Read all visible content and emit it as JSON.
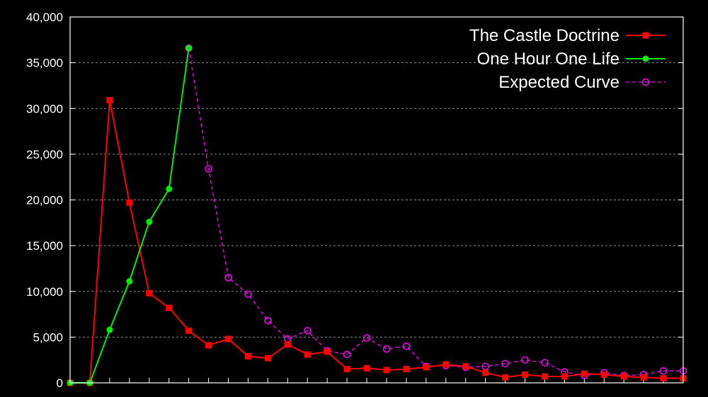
{
  "chart_data": {
    "type": "line",
    "title": "",
    "xlabel": "",
    "ylabel": "",
    "x": [
      0,
      1,
      2,
      3,
      4,
      5,
      6,
      7,
      8,
      9,
      10,
      11,
      12,
      13,
      14,
      15,
      16,
      17,
      18,
      19,
      20,
      21,
      22,
      23,
      24,
      25,
      26,
      27,
      28,
      29,
      30,
      31
    ],
    "xlim": [
      0,
      31
    ],
    "ylim": [
      0,
      40000
    ],
    "yticks": [
      0,
      5000,
      10000,
      15000,
      20000,
      25000,
      30000,
      35000,
      40000
    ],
    "ytick_labels": [
      "0",
      "5,000",
      "10,000",
      "15,000",
      "20,000",
      "25,000",
      "30,000",
      "35,000",
      "40,000"
    ],
    "grid": true,
    "legend_position": "top-right",
    "series": [
      {
        "name": "The Castle Doctrine",
        "color": "#ff0000",
        "marker": "square",
        "line_style": "solid",
        "x": [
          0,
          1,
          2,
          3,
          4,
          5,
          6,
          7,
          8,
          9,
          10,
          11,
          12,
          13,
          14,
          15,
          16,
          17,
          18,
          19,
          20,
          21,
          22,
          23,
          24,
          25,
          26,
          27,
          28,
          29,
          30,
          31
        ],
        "values": [
          0,
          0,
          30900,
          19700,
          9800,
          8200,
          5700,
          4100,
          4800,
          2900,
          2700,
          4200,
          3100,
          3400,
          1500,
          1600,
          1400,
          1500,
          1700,
          2000,
          1800,
          1100,
          600,
          900,
          700,
          700,
          1000,
          900,
          700,
          600,
          500,
          500
        ]
      },
      {
        "name": "One Hour One Life",
        "color": "#00ee00",
        "marker": "circle",
        "line_style": "solid",
        "x": [
          0,
          1,
          2,
          3,
          4,
          5,
          6
        ],
        "values": [
          0,
          0,
          5800,
          11100,
          17600,
          21200,
          36600
        ]
      },
      {
        "name": "Expected Curve",
        "color": "#ff00ff",
        "marker": "open-circle",
        "line_style": "dashed",
        "x": [
          6,
          7,
          8,
          9,
          10,
          11,
          12,
          13,
          14,
          15,
          16,
          17,
          18,
          19,
          20,
          21,
          22,
          23,
          24,
          25,
          26,
          27,
          28,
          29,
          30,
          31
        ],
        "values": [
          36600,
          23400,
          11500,
          9700,
          6800,
          4800,
          5700,
          3500,
          3100,
          4900,
          3700,
          4000,
          1800,
          1900,
          1700,
          1800,
          2100,
          2500,
          2200,
          1200,
          800,
          1100,
          800,
          900,
          1300,
          1300
        ]
      }
    ]
  }
}
